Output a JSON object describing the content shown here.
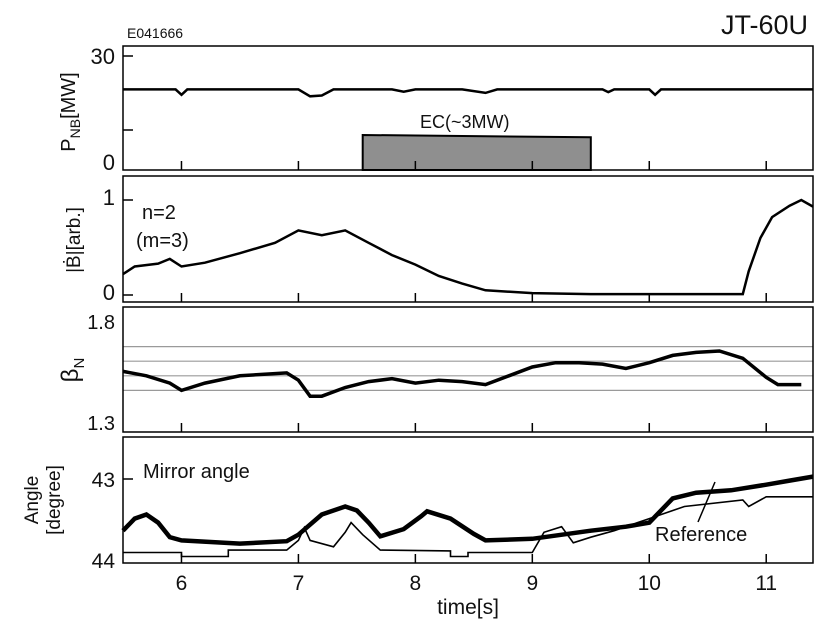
{
  "header": {
    "shot_id": "E041666",
    "machine": "JT-60U"
  },
  "chart_data": [
    {
      "type": "line",
      "ylabel_main": "P",
      "ylabel_sub": "NB",
      "ylabel_unit": "[MW]",
      "ylim": [
        0,
        30
      ],
      "yticks": [
        "0",
        "30"
      ],
      "annotation": "EC(~3MW)",
      "series": [
        {
          "values": [
            [
              5.5,
              21.2
            ],
            [
              5.95,
              21.2
            ],
            [
              6.0,
              19.8
            ],
            [
              6.05,
              21.2
            ],
            [
              7.0,
              21.2
            ],
            [
              7.1,
              19.4
            ],
            [
              7.2,
              19.6
            ],
            [
              7.3,
              21.2
            ],
            [
              7.8,
              21.2
            ],
            [
              7.9,
              20.6
            ],
            [
              8.0,
              21.2
            ],
            [
              8.4,
              21.2
            ],
            [
              8.6,
              20.3
            ],
            [
              8.7,
              21.2
            ],
            [
              9.6,
              21.2
            ],
            [
              9.65,
              20.5
            ],
            [
              9.7,
              21.2
            ],
            [
              10.0,
              21.2
            ],
            [
              10.05,
              19.8
            ],
            [
              10.1,
              21.2
            ],
            [
              11.4,
              21.2
            ]
          ]
        },
        {
          "values": [
            [
              7.55,
              0
            ],
            [
              7.55,
              9.2
            ],
            [
              9.5,
              8.6
            ],
            [
              9.5,
              0
            ]
          ]
        }
      ]
    },
    {
      "type": "line",
      "ylabel": "|Ḃ|[arb.]",
      "ylim": [
        0,
        1
      ],
      "yticks": [
        "0",
        "1"
      ],
      "annotations": [
        "n=2",
        "(m=3)"
      ],
      "series": [
        {
          "values": [
            [
              5.5,
              0.22
            ],
            [
              5.6,
              0.3
            ],
            [
              5.8,
              0.33
            ],
            [
              5.9,
              0.38
            ],
            [
              6.0,
              0.3
            ],
            [
              6.2,
              0.34
            ],
            [
              6.5,
              0.44
            ],
            [
              6.8,
              0.55
            ],
            [
              7.0,
              0.68
            ],
            [
              7.2,
              0.63
            ],
            [
              7.4,
              0.68
            ],
            [
              7.6,
              0.55
            ],
            [
              7.8,
              0.42
            ],
            [
              8.0,
              0.32
            ],
            [
              8.2,
              0.2
            ],
            [
              8.4,
              0.12
            ],
            [
              8.6,
              0.05
            ],
            [
              9.0,
              0.02
            ],
            [
              9.5,
              0.01
            ],
            [
              10.0,
              0.01
            ],
            [
              10.5,
              0.01
            ],
            [
              10.8,
              0.01
            ],
            [
              10.85,
              0.25
            ],
            [
              10.95,
              0.6
            ],
            [
              11.05,
              0.82
            ],
            [
              11.2,
              0.94
            ],
            [
              11.3,
              1.0
            ],
            [
              11.4,
              0.93
            ]
          ]
        }
      ]
    },
    {
      "type": "line",
      "ylabel_main": "β",
      "ylabel_sub": "N",
      "ylim": [
        1.3,
        1.8
      ],
      "yticks": [
        "1.3",
        "1.8"
      ],
      "grid": [
        1.4,
        1.5,
        1.6,
        1.7
      ],
      "series": [
        {
          "values": [
            [
              5.5,
              1.53
            ],
            [
              5.7,
              1.5
            ],
            [
              5.9,
              1.45
            ],
            [
              6.0,
              1.4
            ],
            [
              6.2,
              1.45
            ],
            [
              6.5,
              1.5
            ],
            [
              6.9,
              1.52
            ],
            [
              7.0,
              1.47
            ],
            [
              7.1,
              1.36
            ],
            [
              7.2,
              1.36
            ],
            [
              7.4,
              1.42
            ],
            [
              7.6,
              1.46
            ],
            [
              7.8,
              1.48
            ],
            [
              8.0,
              1.45
            ],
            [
              8.2,
              1.47
            ],
            [
              8.4,
              1.46
            ],
            [
              8.6,
              1.44
            ],
            [
              8.8,
              1.5
            ],
            [
              9.0,
              1.56
            ],
            [
              9.2,
              1.59
            ],
            [
              9.4,
              1.59
            ],
            [
              9.6,
              1.58
            ],
            [
              9.8,
              1.55
            ],
            [
              10.0,
              1.59
            ],
            [
              10.2,
              1.64
            ],
            [
              10.4,
              1.66
            ],
            [
              10.6,
              1.67
            ],
            [
              10.8,
              1.62
            ],
            [
              11.0,
              1.49
            ],
            [
              11.1,
              1.44
            ],
            [
              11.3,
              1.44
            ]
          ]
        }
      ]
    },
    {
      "type": "line",
      "ylabel": "Angle",
      "ylabel2": "[degree]",
      "ylim": [
        44,
        42.7
      ],
      "yticks": [
        "43",
        "44"
      ],
      "xlabel": "time[s]",
      "xlim": [
        5.5,
        11.4
      ],
      "xticks": [
        "6",
        "7",
        "8",
        "9",
        "10",
        "11"
      ],
      "annotations": [
        "Mirror angle",
        "Reference"
      ],
      "series": [
        {
          "name": "Mirror angle",
          "values": [
            [
              5.5,
              43.6
            ],
            [
              5.6,
              43.45
            ],
            [
              5.7,
              43.4
            ],
            [
              5.8,
              43.5
            ],
            [
              5.9,
              43.68
            ],
            [
              6.0,
              43.72
            ],
            [
              6.5,
              43.76
            ],
            [
              6.9,
              43.73
            ],
            [
              7.0,
              43.65
            ],
            [
              7.2,
              43.4
            ],
            [
              7.4,
              43.3
            ],
            [
              7.5,
              43.35
            ],
            [
              7.6,
              43.5
            ],
            [
              7.7,
              43.67
            ],
            [
              7.9,
              43.58
            ],
            [
              8.05,
              43.42
            ],
            [
              8.1,
              43.36
            ],
            [
              8.3,
              43.45
            ],
            [
              8.5,
              43.64
            ],
            [
              8.6,
              43.72
            ],
            [
              9.0,
              43.7
            ],
            [
              9.5,
              43.6
            ],
            [
              9.8,
              43.55
            ],
            [
              10.0,
              43.5
            ],
            [
              10.2,
              43.2
            ],
            [
              10.4,
              43.13
            ],
            [
              10.7,
              43.1
            ],
            [
              11.0,
              43.03
            ],
            [
              11.2,
              42.98
            ],
            [
              11.4,
              42.93
            ]
          ]
        },
        {
          "name": "Reference",
          "values": [
            [
              5.5,
              43.87
            ],
            [
              6.0,
              43.87
            ],
            [
              6.0,
              43.92
            ],
            [
              6.4,
              43.92
            ],
            [
              6.4,
              43.84
            ],
            [
              6.9,
              43.84
            ],
            [
              7.0,
              43.72
            ],
            [
              7.05,
              43.56
            ],
            [
              7.1,
              43.72
            ],
            [
              7.3,
              43.8
            ],
            [
              7.4,
              43.62
            ],
            [
              7.45,
              43.5
            ],
            [
              7.55,
              43.65
            ],
            [
              7.7,
              43.84
            ],
            [
              8.3,
              43.85
            ],
            [
              8.3,
              43.92
            ],
            [
              8.45,
              43.92
            ],
            [
              8.45,
              43.87
            ],
            [
              9.0,
              43.87
            ],
            [
              9.1,
              43.62
            ],
            [
              9.25,
              43.55
            ],
            [
              9.35,
              43.75
            ],
            [
              9.5,
              43.68
            ],
            [
              9.7,
              43.6
            ],
            [
              10.0,
              43.45
            ],
            [
              10.3,
              43.3
            ],
            [
              10.8,
              43.22
            ],
            [
              10.85,
              43.3
            ],
            [
              11.0,
              43.18
            ],
            [
              11.4,
              43.18
            ]
          ]
        }
      ]
    }
  ]
}
